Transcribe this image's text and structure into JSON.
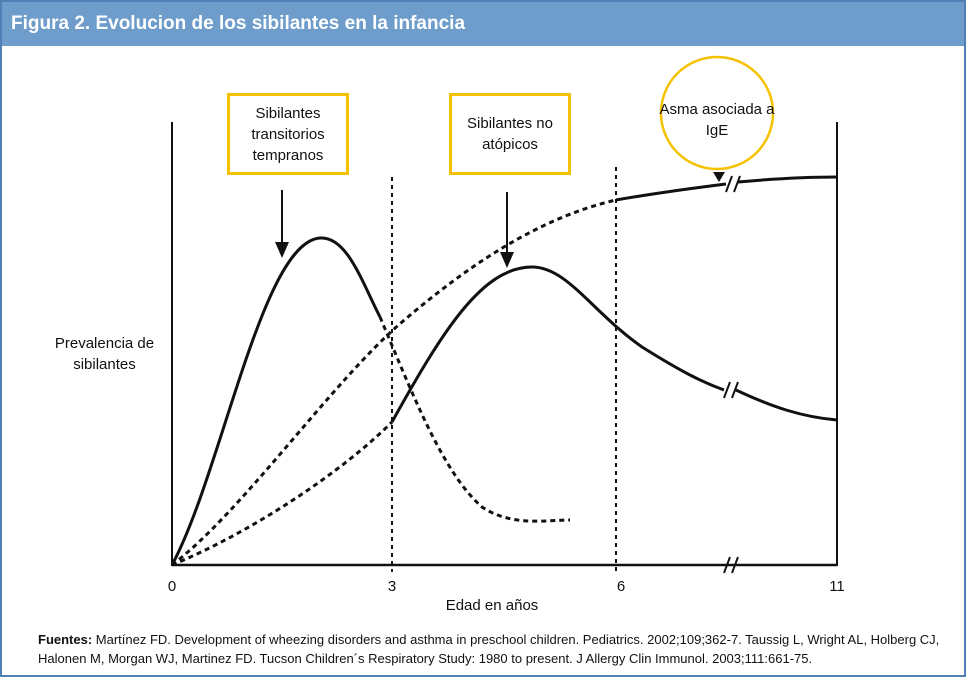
{
  "title": "Figura 2.  Evolucion de los sibilantes en la infancia",
  "y_label": "Prevalencia de sibilantes",
  "x_label": "Edad en años",
  "x_ticks": [
    "0",
    "3",
    "6",
    "11"
  ],
  "labels": {
    "transient": "Sibilantes transitorios tempranos",
    "nonatopic": "Sibilantes no atópicos",
    "ige": "Asma asociada a IgE"
  },
  "colors": {
    "header": "#6e9dcb",
    "highlight": "#f5c200"
  },
  "footer": {
    "bold": "Fuentes:",
    "text": " Martínez FD. Development of wheezing disorders and asthma in preschool children. Pediatrics. 2002;109;362-7. Taussig L, Wright AL, Holberg CJ, Halonen M, Morgan WJ, Martinez FD. Tucson Children´s Respiratory Study: 1980 to present. J Allergy Clin Immunol. 2003;111:661-75."
  }
}
